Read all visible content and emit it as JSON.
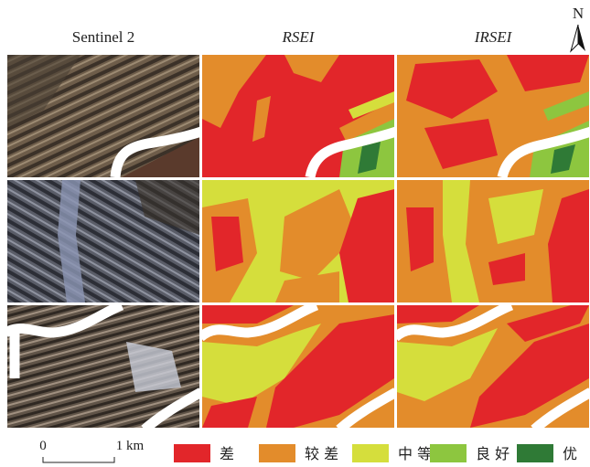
{
  "header": {
    "columns": [
      "Sentinel 2",
      "RSEI",
      "IRSEI"
    ],
    "north": "N"
  },
  "scale_bar": {
    "start": "0",
    "end": "1 km"
  },
  "legend": [
    {
      "label": "差",
      "color": "#e2262a"
    },
    {
      "label": "较 差",
      "color": "#e38c2b"
    },
    {
      "label": "中 等",
      "color": "#d5de3c"
    },
    {
      "label": "良 好",
      "color": "#8dc63f"
    },
    {
      "label": "优",
      "color": "#2f7a36"
    }
  ]
}
